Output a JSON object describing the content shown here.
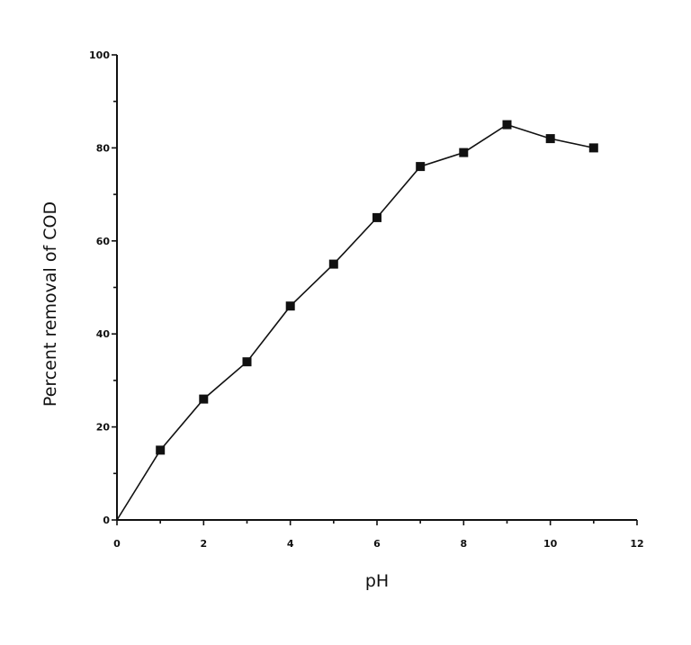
{
  "chart_data": {
    "type": "line",
    "title": "",
    "xlabel": "pH",
    "ylabel": "Percent removal of COD",
    "xlim": [
      0,
      12
    ],
    "ylim": [
      0,
      100
    ],
    "x_ticks": [
      0,
      2,
      4,
      6,
      8,
      10,
      12
    ],
    "y_ticks": [
      0,
      20,
      40,
      60,
      80,
      100
    ],
    "x_tick_labels": [
      "0",
      "2",
      "4",
      "6",
      "8",
      "10",
      "12"
    ],
    "y_tick_labels": [
      "0",
      "20",
      "40",
      "60",
      "80",
      "100"
    ],
    "grid": false,
    "legend": "none",
    "series": [
      {
        "marker": "square",
        "color": "#111111",
        "x": [
          0,
          1,
          2,
          3,
          4,
          5,
          6,
          7,
          8,
          9,
          10,
          11
        ],
        "y": [
          0,
          15,
          26,
          34,
          46,
          55,
          65,
          76,
          79,
          85,
          82,
          80
        ]
      }
    ]
  }
}
